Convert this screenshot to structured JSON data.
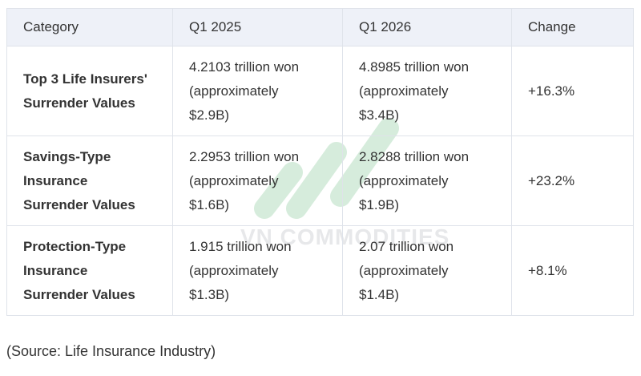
{
  "table": {
    "header": [
      "Category",
      "Q1 2025",
      "Q1 2026",
      "Change"
    ],
    "rows": [
      [
        [
          "Top 3 Life Insurers'",
          "Surrender Values"
        ],
        [
          "4.2103 trillion won",
          "(approximately",
          "$2.9B)"
        ],
        [
          "4.8985 trillion won",
          "(approximately",
          "$3.4B)"
        ],
        [
          "+16.3%"
        ]
      ],
      [
        [
          "Savings-Type",
          "Insurance",
          "Surrender Values"
        ],
        [
          "2.2953 trillion won",
          "(approximately",
          "$1.6B)"
        ],
        [
          "2.8288 trillion won",
          "(approximately",
          "$1.9B)"
        ],
        [
          "+23.2%"
        ]
      ],
      [
        [
          "Protection-Type",
          "Insurance",
          "Surrender Values"
        ],
        [
          "1.915 trillion won",
          "(approximately",
          "$1.3B)"
        ],
        [
          "2.07 trillion won",
          "(approximately",
          "$1.4B)"
        ],
        [
          "+8.1%"
        ]
      ]
    ]
  },
  "source": "(Source: Life Insurance Industry)",
  "watermark": "VN COMMODITIES"
}
